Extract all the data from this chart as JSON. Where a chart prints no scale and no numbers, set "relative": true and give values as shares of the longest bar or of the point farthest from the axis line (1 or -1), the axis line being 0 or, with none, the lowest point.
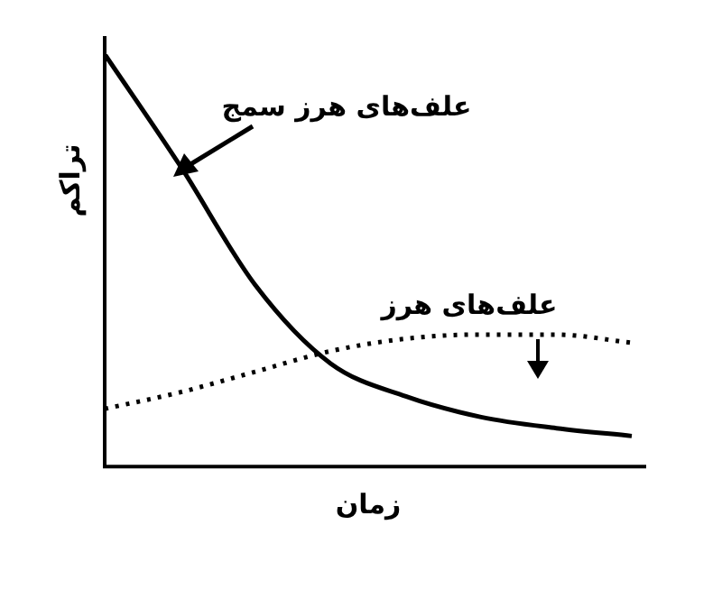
{
  "chart_data": {
    "type": "line",
    "relative": true,
    "xlabel": "زمان",
    "ylabel": "تراکم",
    "categories": [
      null,
      null,
      null,
      null,
      null,
      null,
      null,
      null
    ],
    "series": [
      {
        "name": "علف‌های هرز سمج",
        "color": "#000000",
        "line_style": "solid",
        "values": [
          1.0,
          0.73,
          0.44,
          0.25,
          0.17,
          0.12,
          0.093,
          0.074
        ]
      },
      {
        "name": "علف‌های هرز",
        "color": "#000000",
        "line_style": "dotted",
        "values": [
          0.14,
          0.18,
          0.23,
          0.28,
          0.31,
          0.32,
          0.32,
          0.3
        ]
      }
    ],
    "legend": false,
    "marker": "none"
  }
}
